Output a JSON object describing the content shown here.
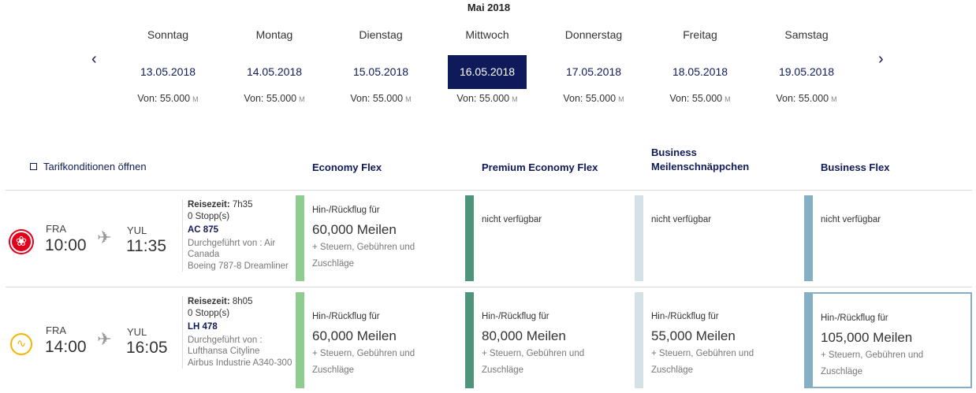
{
  "calendar": {
    "month": "Mai 2018",
    "prev_icon": "chevron-left-icon",
    "next_icon": "chevron-right-icon",
    "days": [
      {
        "name": "Sonntag",
        "date": "13.05.2018",
        "price": "Von: 55.000",
        "unit": "M",
        "selected": false
      },
      {
        "name": "Montag",
        "date": "14.05.2018",
        "price": "Von: 55.000",
        "unit": "M",
        "selected": false
      },
      {
        "name": "Dienstag",
        "date": "15.05.2018",
        "price": "Von: 55.000",
        "unit": "M",
        "selected": false
      },
      {
        "name": "Mittwoch",
        "date": "16.05.2018",
        "price": "Von: 55.000",
        "unit": "M",
        "selected": true
      },
      {
        "name": "Donnerstag",
        "date": "17.05.2018",
        "price": "Von: 55.000",
        "unit": "M",
        "selected": false
      },
      {
        "name": "Freitag",
        "date": "18.05.2018",
        "price": "Von: 55.000",
        "unit": "M",
        "selected": false
      },
      {
        "name": "Samstag",
        "date": "19.05.2018",
        "price": "Von: 55.000",
        "unit": "M",
        "selected": false
      }
    ]
  },
  "table": {
    "tarif_link": "Tarifkonditionen öffnen",
    "columns": [
      {
        "label": "Economy Flex",
        "color": "#8fcc8f"
      },
      {
        "label": "Premium Economy Flex",
        "color": "#4d947a"
      },
      {
        "label1": "Business",
        "label2": "Meilenschnäppchen",
        "color": "#d4e2e8"
      },
      {
        "label": "Business Flex",
        "color": "#86afc4"
      }
    ],
    "rows": [
      {
        "airline": "Air Canada",
        "from": "FRA",
        "dep": "10:00",
        "to": "YUL",
        "arr": "11:35",
        "duration_label": "Reisezeit:",
        "duration": "7h35",
        "stops": "0 Stopp(s)",
        "flight": "AC 875",
        "operated": "Durchgeführt von : Air Canada",
        "aircraft": "Boeing 787-8 Dreamliner",
        "fares": [
          {
            "label": "Hin-/Rückflug für",
            "miles": "60,000 Meilen",
            "note": "+ Steuern, Gebühren und Zuschläge"
          },
          {
            "na": "nicht verfügbar"
          },
          {
            "na": "nicht verfügbar"
          },
          {
            "na": "nicht verfügbar"
          }
        ]
      },
      {
        "airline": "Lufthansa",
        "from": "FRA",
        "dep": "14:00",
        "to": "YUL",
        "arr": "16:05",
        "duration_label": "Reisezeit:",
        "duration": "8h05",
        "stops": "0 Stopp(s)",
        "flight": "LH 478",
        "operated": "Durchgeführt von : Lufthansa Cityline",
        "aircraft": "Airbus Industrie A340-300",
        "fares": [
          {
            "label": "Hin-/Rückflug für",
            "miles": "60,000 Meilen",
            "note": "+ Steuern, Gebühren und Zuschläge"
          },
          {
            "label": "Hin-/Rückflug für",
            "miles": "80,000 Meilen",
            "note": "+ Steuern, Gebühren und Zuschläge"
          },
          {
            "label": "Hin-/Rückflug für",
            "miles": "55,000 Meilen",
            "note": "+ Steuern, Gebühren und Zuschläge"
          },
          {
            "label": "Hin-/Rückflug für",
            "miles": "105,000 Meilen",
            "note": "+ Steuern, Gebühren und Zuschläge",
            "selected": true
          }
        ]
      }
    ]
  }
}
